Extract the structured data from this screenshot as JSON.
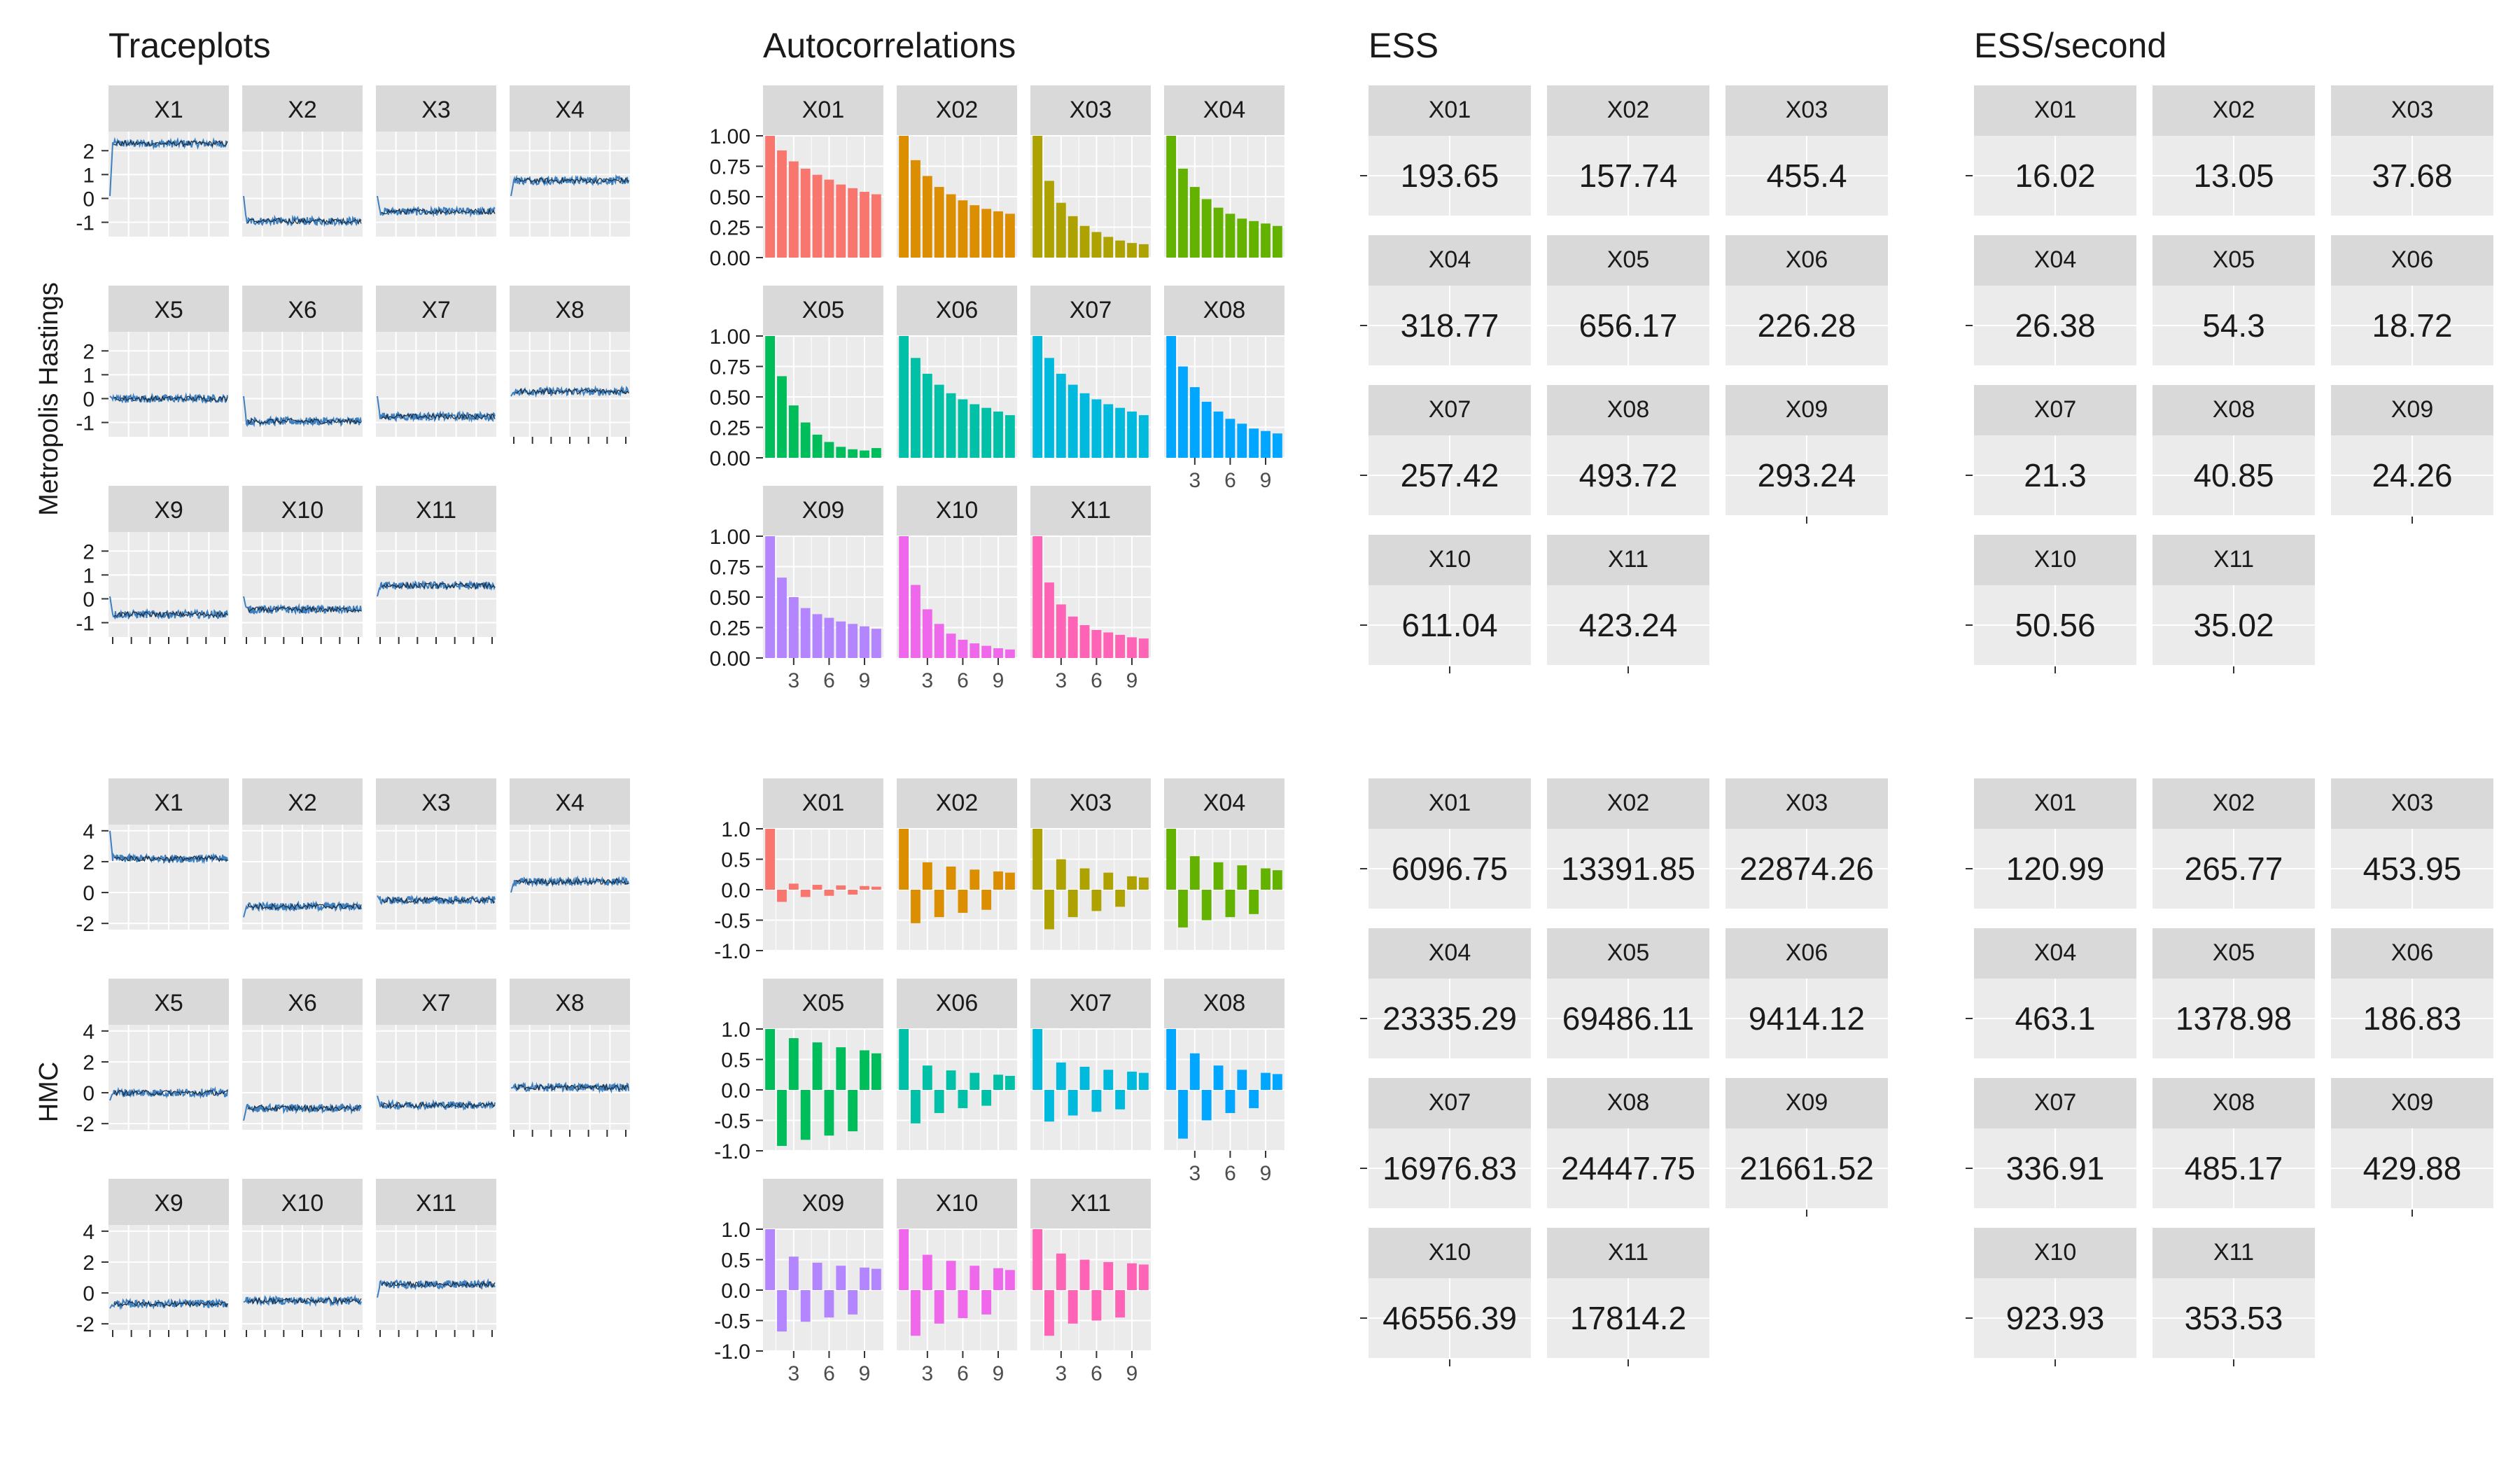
{
  "section_titles": [
    "Traceplots",
    "Autocorrelations",
    "ESS",
    "ESS/second"
  ],
  "row_labels": [
    "Metropolis Hastings",
    "HMC"
  ],
  "chart_data": [
    {
      "type": "line",
      "title": "Traceplots",
      "row": "Metropolis Hastings",
      "panel_labels": [
        "X1",
        "X2",
        "X3",
        "X4",
        "X5",
        "X6",
        "X7",
        "X8",
        "X9",
        "X10",
        "X11"
      ],
      "ylim": [
        -1.6,
        2.8
      ],
      "yticks": [
        -1,
        0,
        1,
        2
      ],
      "grid": true,
      "series_color": "#3D7FBF",
      "panel_levels": [
        2.3,
        -0.95,
        -0.55,
        0.75,
        0.0,
        -0.95,
        -0.75,
        0.3,
        -0.65,
        -0.45,
        0.55
      ],
      "panel_start": [
        0.1,
        0.1,
        0.1,
        0.1,
        0.1,
        0.1,
        0.1,
        0.1,
        0.1,
        0.1,
        0.1
      ]
    },
    {
      "type": "line",
      "title": "Traceplots",
      "row": "HMC",
      "panel_labels": [
        "X1",
        "X2",
        "X3",
        "X4",
        "X5",
        "X6",
        "X7",
        "X8",
        "X9",
        "X10",
        "X11"
      ],
      "ylim": [
        -2.4,
        4.4
      ],
      "yticks": [
        -2,
        0,
        2,
        4
      ],
      "grid": true,
      "series_color": "#3D7FBF",
      "panel_levels": [
        2.2,
        -0.9,
        -0.5,
        0.7,
        0.0,
        -1.0,
        -0.8,
        0.35,
        -0.7,
        -0.5,
        0.55
      ],
      "panel_start": [
        4.0,
        -1.6,
        -0.2,
        0.0,
        -0.5,
        -1.8,
        -0.2,
        0.3,
        -1.0,
        -0.6,
        -0.3
      ]
    },
    {
      "type": "bar",
      "title": "Autocorrelations",
      "row": "Metropolis Hastings",
      "ylim": [
        0,
        1
      ],
      "yticks": [
        "0.00",
        "0.25",
        "0.50",
        "0.75",
        "1.00"
      ],
      "xticks": [
        "3",
        "6",
        "9"
      ],
      "categories": [
        1,
        2,
        3,
        4,
        5,
        6,
        7,
        8,
        9,
        10
      ],
      "series": [
        {
          "name": "X01",
          "color": "#F8766D",
          "values": [
            1.0,
            0.88,
            0.79,
            0.73,
            0.68,
            0.64,
            0.6,
            0.57,
            0.54,
            0.52
          ]
        },
        {
          "name": "X02",
          "color": "#DB8E00",
          "values": [
            1.0,
            0.8,
            0.67,
            0.58,
            0.52,
            0.47,
            0.43,
            0.4,
            0.38,
            0.36
          ]
        },
        {
          "name": "X03",
          "color": "#AEA200",
          "values": [
            1.0,
            0.63,
            0.45,
            0.34,
            0.26,
            0.21,
            0.17,
            0.14,
            0.12,
            0.11
          ]
        },
        {
          "name": "X04",
          "color": "#64B200",
          "values": [
            1.0,
            0.73,
            0.58,
            0.48,
            0.41,
            0.36,
            0.32,
            0.3,
            0.28,
            0.26
          ]
        },
        {
          "name": "X05",
          "color": "#00BD5C",
          "values": [
            1.0,
            0.67,
            0.43,
            0.29,
            0.19,
            0.13,
            0.09,
            0.07,
            0.06,
            0.08
          ]
        },
        {
          "name": "X06",
          "color": "#00C1A7",
          "values": [
            1.0,
            0.82,
            0.69,
            0.6,
            0.53,
            0.48,
            0.44,
            0.41,
            0.38,
            0.35
          ]
        },
        {
          "name": "X07",
          "color": "#00BADE",
          "values": [
            1.0,
            0.82,
            0.69,
            0.6,
            0.53,
            0.48,
            0.44,
            0.41,
            0.38,
            0.35
          ]
        },
        {
          "name": "X08",
          "color": "#00A6FF",
          "values": [
            1.0,
            0.75,
            0.58,
            0.46,
            0.38,
            0.32,
            0.28,
            0.24,
            0.22,
            0.2
          ]
        },
        {
          "name": "X09",
          "color": "#B385FF",
          "values": [
            1.0,
            0.66,
            0.5,
            0.41,
            0.36,
            0.33,
            0.3,
            0.28,
            0.26,
            0.24
          ]
        },
        {
          "name": "X10",
          "color": "#EF67EB",
          "values": [
            1.0,
            0.6,
            0.4,
            0.28,
            0.2,
            0.15,
            0.12,
            0.1,
            0.08,
            0.07
          ]
        },
        {
          "name": "X11",
          "color": "#FF63B6",
          "values": [
            1.0,
            0.62,
            0.44,
            0.34,
            0.27,
            0.23,
            0.21,
            0.19,
            0.17,
            0.16
          ]
        }
      ]
    },
    {
      "type": "bar",
      "title": "Autocorrelations",
      "row": "HMC",
      "ylim": [
        -1,
        1
      ],
      "yticks": [
        "-1.0",
        "-0.5",
        "0.0",
        "0.5",
        "1.0"
      ],
      "xticks": [
        "3",
        "6",
        "9"
      ],
      "categories": [
        1,
        2,
        3,
        4,
        5,
        6,
        7,
        8,
        9,
        10
      ],
      "series": [
        {
          "name": "X01",
          "color": "#F8766D",
          "values": [
            1.0,
            -0.2,
            0.1,
            -0.12,
            0.08,
            -0.1,
            0.07,
            -0.08,
            0.06,
            0.05
          ]
        },
        {
          "name": "X02",
          "color": "#DB8E00",
          "values": [
            1.0,
            -0.55,
            0.45,
            -0.45,
            0.38,
            -0.38,
            0.33,
            -0.33,
            0.3,
            0.28
          ]
        },
        {
          "name": "X03",
          "color": "#AEA200",
          "values": [
            1.0,
            -0.65,
            0.5,
            -0.45,
            0.35,
            -0.35,
            0.28,
            -0.28,
            0.22,
            0.2
          ]
        },
        {
          "name": "X04",
          "color": "#64B200",
          "values": [
            1.0,
            -0.62,
            0.55,
            -0.5,
            0.45,
            -0.45,
            0.4,
            -0.4,
            0.35,
            0.32
          ]
        },
        {
          "name": "X05",
          "color": "#00BD5C",
          "values": [
            1.0,
            -0.92,
            0.85,
            -0.82,
            0.78,
            -0.75,
            0.7,
            -0.68,
            0.65,
            0.6
          ]
        },
        {
          "name": "X06",
          "color": "#00C1A7",
          "values": [
            1.0,
            -0.55,
            0.4,
            -0.38,
            0.32,
            -0.3,
            0.28,
            -0.26,
            0.25,
            0.23
          ]
        },
        {
          "name": "X07",
          "color": "#00BADE",
          "values": [
            1.0,
            -0.52,
            0.45,
            -0.42,
            0.38,
            -0.36,
            0.33,
            -0.32,
            0.3,
            0.28
          ]
        },
        {
          "name": "X08",
          "color": "#00A6FF",
          "values": [
            1.0,
            -0.8,
            0.6,
            -0.5,
            0.4,
            -0.38,
            0.33,
            -0.3,
            0.28,
            0.26
          ]
        },
        {
          "name": "X09",
          "color": "#B385FF",
          "values": [
            1.0,
            -0.68,
            0.55,
            -0.52,
            0.45,
            -0.45,
            0.4,
            -0.4,
            0.37,
            0.35
          ]
        },
        {
          "name": "X10",
          "color": "#EF67EB",
          "values": [
            1.0,
            -0.75,
            0.58,
            -0.55,
            0.48,
            -0.46,
            0.4,
            -0.4,
            0.36,
            0.33
          ]
        },
        {
          "name": "X11",
          "color": "#FF63B6",
          "values": [
            1.0,
            -0.75,
            0.6,
            -0.55,
            0.5,
            -0.5,
            0.46,
            -0.45,
            0.44,
            0.42
          ]
        }
      ]
    },
    {
      "type": "table",
      "title": "ESS",
      "row": "Metropolis Hastings",
      "labels": [
        "X01",
        "X02",
        "X03",
        "X04",
        "X05",
        "X06",
        "X07",
        "X08",
        "X09",
        "X10",
        "X11"
      ],
      "values": [
        "193.65",
        "157.74",
        "455.4",
        "318.77",
        "656.17",
        "226.28",
        "257.42",
        "493.72",
        "293.24",
        "611.04",
        "423.24"
      ]
    },
    {
      "type": "table",
      "title": "ESS/second",
      "row": "Metropolis Hastings",
      "labels": [
        "X01",
        "X02",
        "X03",
        "X04",
        "X05",
        "X06",
        "X07",
        "X08",
        "X09",
        "X10",
        "X11"
      ],
      "values": [
        "16.02",
        "13.05",
        "37.68",
        "26.38",
        "54.3",
        "18.72",
        "21.3",
        "40.85",
        "24.26",
        "50.56",
        "35.02"
      ]
    },
    {
      "type": "table",
      "title": "ESS",
      "row": "HMC",
      "labels": [
        "X01",
        "X02",
        "X03",
        "X04",
        "X05",
        "X06",
        "X07",
        "X08",
        "X09",
        "X10",
        "X11"
      ],
      "values": [
        "6096.75",
        "13391.85",
        "22874.26",
        "23335.29",
        "69486.11",
        "9414.12",
        "16976.83",
        "24447.75",
        "21661.52",
        "46556.39",
        "17814.2"
      ]
    },
    {
      "type": "table",
      "title": "ESS/second",
      "row": "HMC",
      "labels": [
        "X01",
        "X02",
        "X03",
        "X04",
        "X05",
        "X06",
        "X07",
        "X08",
        "X09",
        "X10",
        "X11"
      ],
      "values": [
        "120.99",
        "265.77",
        "453.95",
        "463.1",
        "1378.98",
        "186.83",
        "336.91",
        "485.17",
        "429.88",
        "923.93",
        "353.53"
      ]
    }
  ]
}
